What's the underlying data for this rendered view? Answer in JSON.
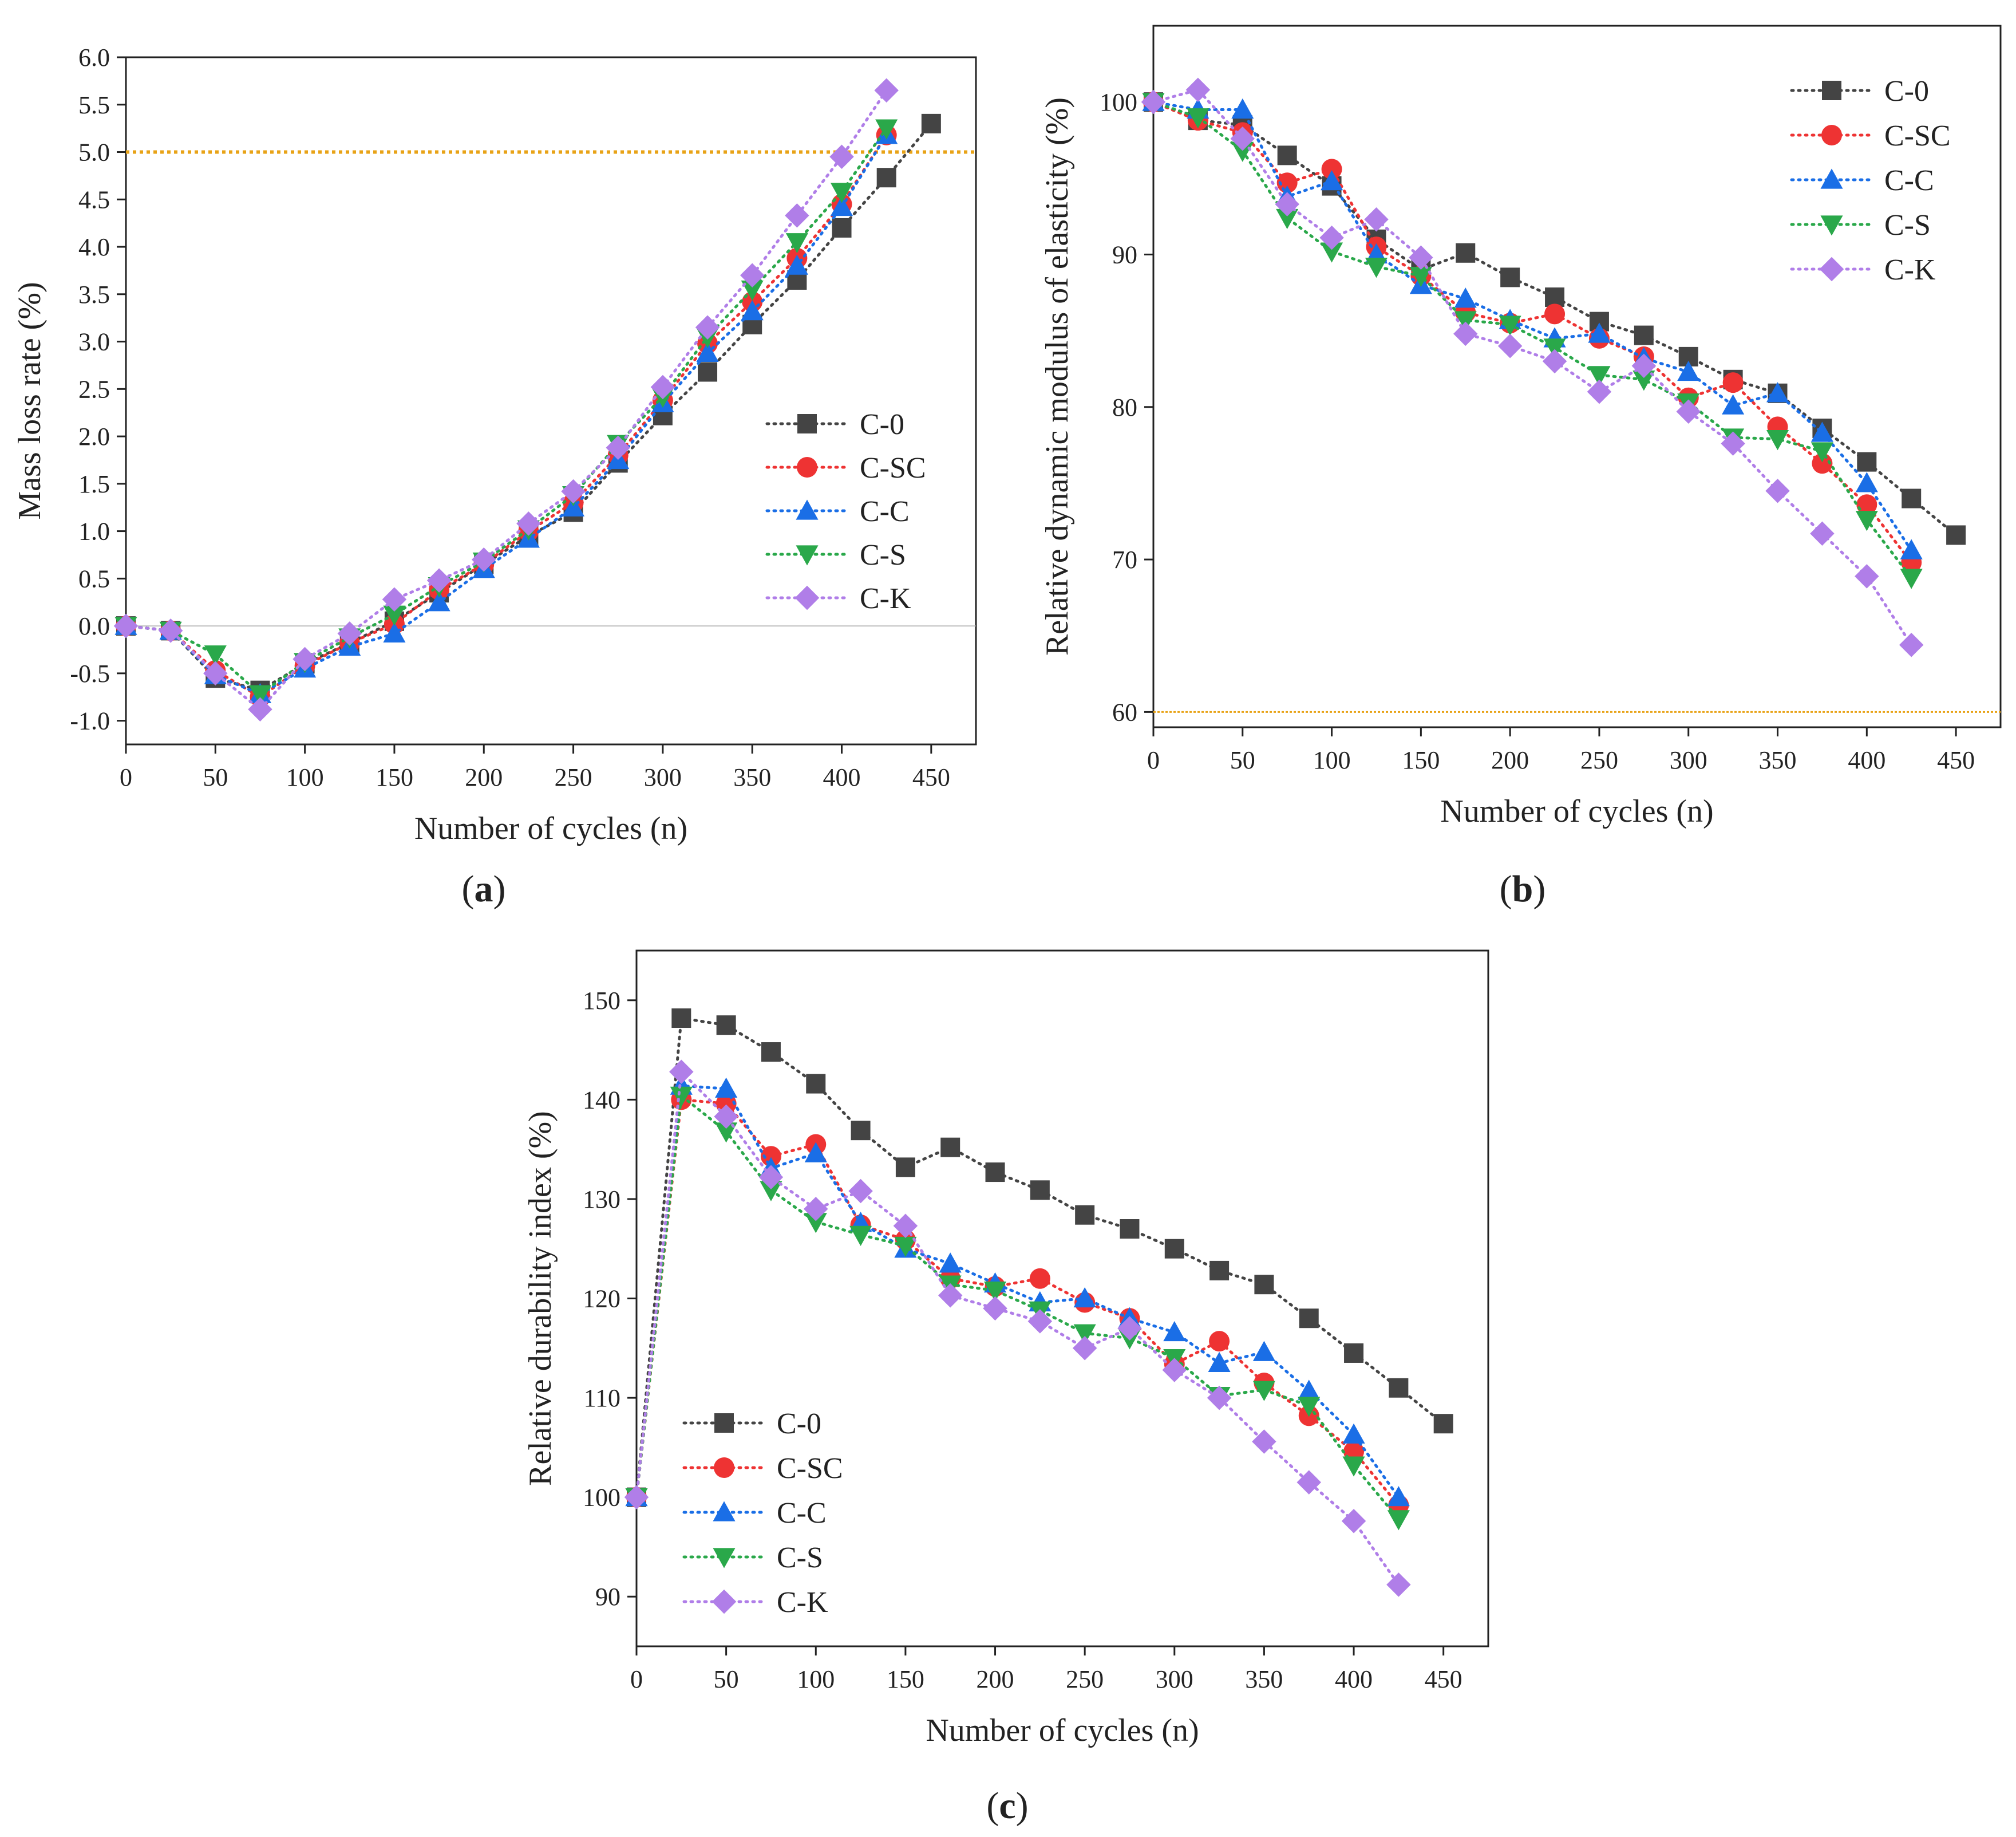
{
  "figure": {
    "captions": [
      "(a)",
      "(b)",
      "(c)"
    ],
    "caption_letters": [
      "a",
      "b",
      "c"
    ]
  },
  "series_style": {
    "C-0": {
      "color": "#444444",
      "marker": "square"
    },
    "C-SC": {
      "color": "#ee3333",
      "marker": "circle"
    },
    "C-C": {
      "color": "#1a6ee6",
      "marker": "triangle-up"
    },
    "C-S": {
      "color": "#2aa84a",
      "marker": "triangle-down"
    },
    "C-K": {
      "color": "#b07ee8",
      "marker": "diamond"
    },
    "reference_line_color": "#e8a317"
  },
  "chart_data": [
    {
      "id": "a",
      "type": "line",
      "caption": "(a)",
      "xlabel": "Number of cycles (n)",
      "ylabel": "Mass loss rate (%)",
      "xlim": [
        0,
        475
      ],
      "ylim": [
        -1.25,
        6.0
      ],
      "xticks": [
        0,
        50,
        100,
        150,
        200,
        250,
        300,
        350,
        400,
        450
      ],
      "yticks": [
        -1.0,
        -0.5,
        0.0,
        0.5,
        1.0,
        1.5,
        2.0,
        2.5,
        3.0,
        3.5,
        4.0,
        4.5,
        5.0,
        5.5,
        6.0
      ],
      "ytick_labels": [
        "-1.0",
        "-0.5",
        "0.0",
        "0.5",
        "1.0",
        "1.5",
        "2.0",
        "2.5",
        "3.0",
        "3.5",
        "4.0",
        "4.5",
        "5.0",
        "5.5",
        "6.0"
      ],
      "reference_line": 5.0,
      "zero_line": 0.0,
      "legend_position": "center-right",
      "series": [
        {
          "name": "C-0",
          "x": [
            0,
            25,
            50,
            75,
            100,
            125,
            150,
            175,
            200,
            225,
            250,
            275,
            300,
            325,
            350,
            375,
            400,
            425,
            450
          ],
          "values": [
            0.0,
            -0.05,
            -0.55,
            -0.68,
            -0.4,
            -0.18,
            0.05,
            0.35,
            0.65,
            0.95,
            1.2,
            1.72,
            2.22,
            2.68,
            3.18,
            3.65,
            4.2,
            4.73,
            5.3
          ]
        },
        {
          "name": "C-SC",
          "x": [
            0,
            25,
            50,
            75,
            100,
            125,
            150,
            175,
            200,
            225,
            250,
            275,
            300,
            325,
            350,
            375,
            400,
            425
          ],
          "values": [
            0.0,
            -0.05,
            -0.47,
            -0.75,
            -0.42,
            -0.18,
            0.02,
            0.38,
            0.65,
            1.0,
            1.3,
            1.8,
            2.38,
            2.98,
            3.42,
            3.88,
            4.45,
            5.18
          ]
        },
        {
          "name": "C-C",
          "x": [
            0,
            25,
            50,
            75,
            100,
            125,
            150,
            175,
            200,
            225,
            250,
            275,
            300,
            325,
            350,
            375,
            400,
            425
          ],
          "values": [
            0.0,
            -0.05,
            -0.52,
            -0.72,
            -0.45,
            -0.22,
            -0.08,
            0.25,
            0.6,
            0.92,
            1.25,
            1.75,
            2.35,
            2.88,
            3.32,
            3.8,
            4.42,
            5.18
          ]
        },
        {
          "name": "C-S",
          "x": [
            0,
            25,
            50,
            75,
            100,
            125,
            150,
            175,
            200,
            225,
            250,
            275,
            300,
            325,
            350,
            375,
            400,
            425
          ],
          "values": [
            0.0,
            -0.05,
            -0.3,
            -0.72,
            -0.38,
            -0.12,
            0.12,
            0.42,
            0.68,
            1.02,
            1.38,
            1.92,
            2.42,
            3.05,
            3.55,
            4.05,
            4.58,
            5.25
          ]
        },
        {
          "name": "C-K",
          "x": [
            0,
            25,
            50,
            75,
            100,
            125,
            150,
            175,
            200,
            225,
            250,
            275,
            300,
            325,
            350,
            375,
            400,
            425
          ],
          "values": [
            0.0,
            -0.05,
            -0.5,
            -0.88,
            -0.35,
            -0.08,
            0.28,
            0.48,
            0.7,
            1.08,
            1.42,
            1.88,
            2.52,
            3.15,
            3.7,
            4.33,
            4.95,
            5.65
          ]
        }
      ]
    },
    {
      "id": "b",
      "type": "line",
      "caption": "(b)",
      "xlabel": "Number of cycles (n)",
      "ylabel": "Relative dynamic modulus of elasticity (%)",
      "xlim": [
        0,
        475
      ],
      "ylim": [
        59,
        105
      ],
      "xticks": [
        0,
        50,
        100,
        150,
        200,
        250,
        300,
        350,
        400,
        450
      ],
      "yticks": [
        60,
        70,
        80,
        90,
        100
      ],
      "ytick_labels": [
        "60",
        "70",
        "80",
        "90",
        "100"
      ],
      "reference_line": 60,
      "legend_position": "top-right",
      "series": [
        {
          "name": "C-0",
          "x": [
            0,
            25,
            50,
            75,
            100,
            125,
            150,
            175,
            200,
            225,
            250,
            275,
            300,
            325,
            350,
            375,
            400,
            425,
            450
          ],
          "values": [
            100,
            98.8,
            98.5,
            96.5,
            94.5,
            91.0,
            89.0,
            90.1,
            88.5,
            87.2,
            85.6,
            84.7,
            83.3,
            81.8,
            80.9,
            78.6,
            76.4,
            74.0,
            71.6
          ]
        },
        {
          "name": "C-SC",
          "x": [
            0,
            25,
            50,
            75,
            100,
            125,
            150,
            175,
            200,
            225,
            250,
            275,
            300,
            325,
            350,
            375,
            400,
            425
          ],
          "values": [
            100,
            98.8,
            98.0,
            94.7,
            95.6,
            90.5,
            88.6,
            86.2,
            85.5,
            86.1,
            84.5,
            83.3,
            80.6,
            81.6,
            78.7,
            76.3,
            73.6,
            69.8
          ]
        },
        {
          "name": "C-C",
          "x": [
            0,
            25,
            50,
            75,
            100,
            125,
            150,
            175,
            200,
            225,
            250,
            275,
            300,
            325,
            350,
            375,
            400,
            425
          ],
          "values": [
            100,
            99.5,
            99.5,
            93.8,
            94.8,
            90.0,
            88.0,
            87.1,
            85.7,
            84.5,
            84.8,
            83.2,
            82.3,
            80.1,
            80.9,
            78.3,
            75.0,
            70.6
          ]
        },
        {
          "name": "C-S",
          "x": [
            0,
            25,
            50,
            75,
            100,
            125,
            150,
            175,
            200,
            225,
            250,
            275,
            300,
            325,
            350,
            375,
            400,
            425
          ],
          "values": [
            100,
            99.0,
            96.8,
            92.4,
            90.2,
            89.2,
            88.6,
            85.7,
            85.4,
            83.9,
            82.1,
            81.8,
            80.3,
            78.0,
            77.9,
            77.1,
            72.6,
            68.8
          ]
        },
        {
          "name": "C-K",
          "x": [
            0,
            25,
            50,
            75,
            100,
            125,
            150,
            175,
            200,
            225,
            250,
            275,
            300,
            325,
            350,
            375,
            400,
            425
          ],
          "values": [
            100,
            100.8,
            97.6,
            93.3,
            91.1,
            92.3,
            89.8,
            84.8,
            84.0,
            83.0,
            81.0,
            82.7,
            79.7,
            77.6,
            74.5,
            71.7,
            68.9,
            64.4
          ]
        }
      ]
    },
    {
      "id": "c",
      "type": "line",
      "caption": "(c)",
      "xlabel": "Number of cycles (n)",
      "ylabel": "Relative durability index (%)",
      "xlim": [
        0,
        475
      ],
      "ylim": [
        85,
        155
      ],
      "xticks": [
        0,
        50,
        100,
        150,
        200,
        250,
        300,
        350,
        400,
        450
      ],
      "yticks": [
        90,
        100,
        110,
        120,
        130,
        140,
        150
      ],
      "ytick_labels": [
        "90",
        "100",
        "110",
        "120",
        "130",
        "140",
        "150"
      ],
      "legend_position": "bottom-left",
      "series": [
        {
          "name": "C-0",
          "x": [
            0,
            25,
            50,
            75,
            100,
            125,
            150,
            175,
            200,
            225,
            250,
            275,
            300,
            325,
            350,
            375,
            400,
            425,
            450
          ],
          "values": [
            100,
            148.2,
            147.5,
            144.8,
            141.6,
            136.9,
            133.2,
            135.2,
            132.7,
            130.9,
            128.4,
            127.0,
            125.0,
            122.8,
            121.4,
            118.0,
            114.5,
            111.0,
            107.4
          ]
        },
        {
          "name": "C-SC",
          "x": [
            0,
            25,
            50,
            75,
            100,
            125,
            150,
            175,
            200,
            225,
            250,
            275,
            300,
            325,
            350,
            375,
            400,
            425
          ],
          "values": [
            100,
            140.0,
            139.6,
            134.3,
            135.5,
            127.4,
            125.9,
            122.0,
            121.2,
            122.0,
            119.6,
            118.0,
            113.4,
            115.7,
            111.5,
            108.2,
            104.6,
            99.2
          ]
        },
        {
          "name": "C-C",
          "x": [
            0,
            25,
            50,
            75,
            100,
            125,
            150,
            175,
            200,
            225,
            250,
            275,
            300,
            325,
            350,
            375,
            400,
            425
          ],
          "values": [
            100,
            141.4,
            141.1,
            133.1,
            134.6,
            127.6,
            125.0,
            123.5,
            121.5,
            119.6,
            120.0,
            118.0,
            116.6,
            113.5,
            114.6,
            110.7,
            106.3,
            100.0
          ]
        },
        {
          "name": "C-S",
          "x": [
            0,
            25,
            50,
            75,
            100,
            125,
            150,
            175,
            200,
            225,
            250,
            275,
            300,
            325,
            350,
            375,
            400,
            425
          ],
          "values": [
            100,
            140.4,
            136.8,
            130.9,
            127.7,
            126.4,
            125.3,
            121.4,
            120.8,
            118.8,
            116.5,
            116.0,
            114.0,
            110.2,
            110.8,
            109.2,
            103.2,
            97.8
          ]
        },
        {
          "name": "C-K",
          "x": [
            0,
            25,
            50,
            75,
            100,
            125,
            150,
            175,
            200,
            225,
            250,
            275,
            300,
            325,
            350,
            375,
            400,
            425
          ],
          "values": [
            100,
            142.8,
            138.3,
            132.2,
            129.0,
            130.8,
            127.3,
            120.3,
            119.0,
            117.7,
            115.0,
            117.0,
            112.8,
            110.0,
            105.6,
            101.5,
            97.6,
            91.2
          ]
        }
      ]
    }
  ]
}
